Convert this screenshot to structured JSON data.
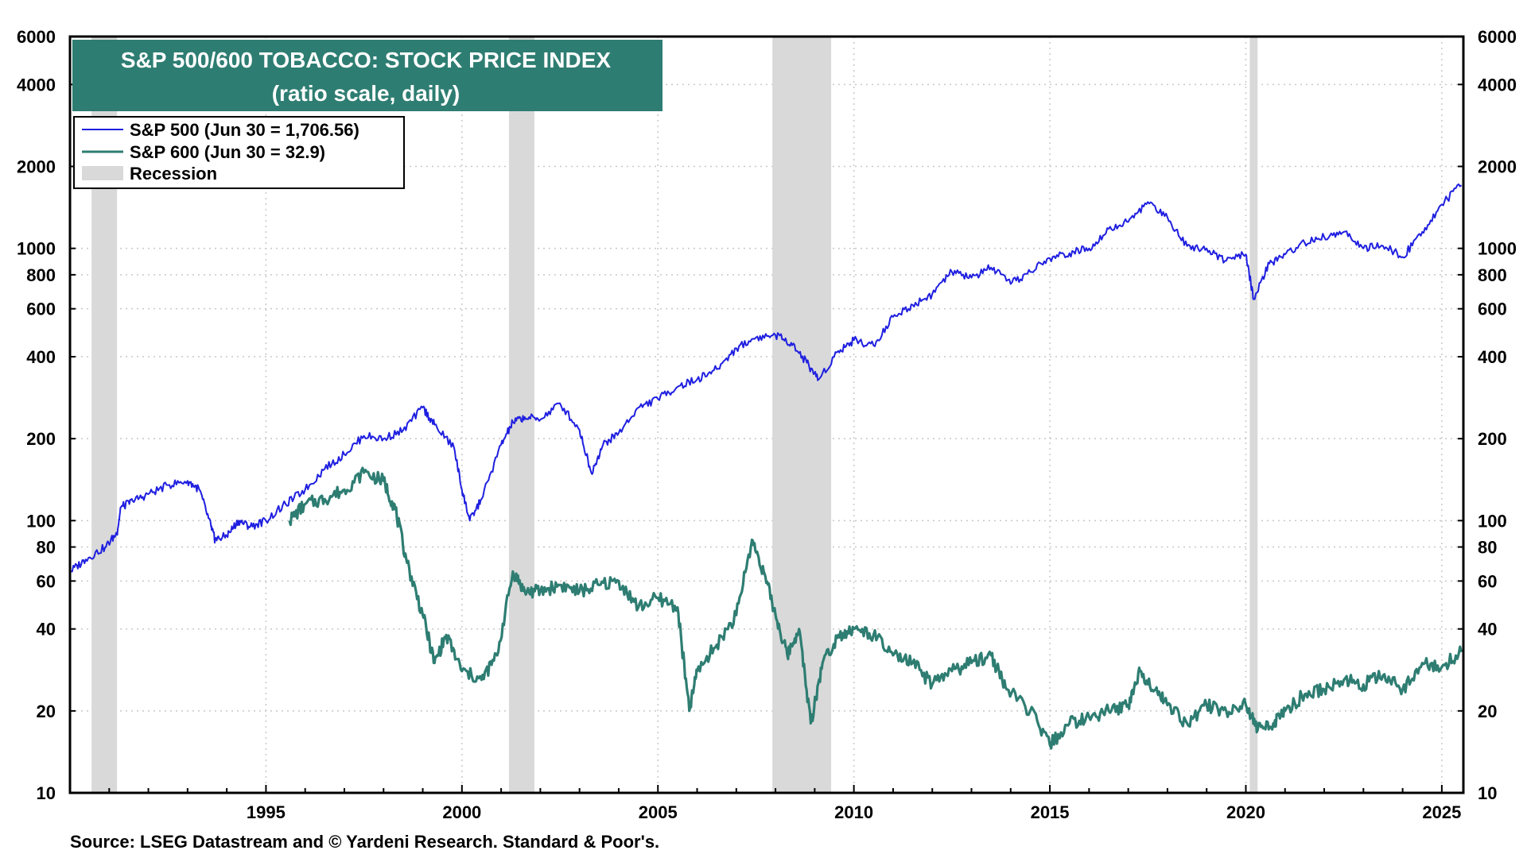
{
  "chart_data": {
    "type": "line",
    "title": "S&P 500/600 TOBACCO: STOCK PRICE INDEX",
    "subtitle": "(ratio scale, daily)",
    "scale": "log",
    "ylim": [
      10,
      6000
    ],
    "xlim": [
      1990.0,
      2025.55
    ],
    "y_ticks": [
      10,
      20,
      40,
      60,
      80,
      100,
      200,
      400,
      600,
      800,
      1000,
      2000,
      4000,
      6000
    ],
    "y_tick_labels": [
      "10",
      "20",
      "40",
      "60",
      "80",
      "100",
      "200",
      "400",
      "600",
      "800",
      "1000",
      "2000",
      "4000",
      "6000"
    ],
    "x_ticks": [
      1995,
      2000,
      2005,
      2010,
      2015,
      2020,
      2025
    ],
    "x_tick_labels": [
      "1995",
      "2000",
      "2005",
      "2010",
      "2015",
      "2020",
      "2025"
    ],
    "grid": true,
    "legend_position": "top-left",
    "series": [
      {
        "name": "S&P 500 (Jun 30 = 1,706.56)",
        "color": "#1f1fe0",
        "points": [
          [
            1990.0,
            65
          ],
          [
            1990.4,
            72
          ],
          [
            1990.9,
            80
          ],
          [
            1991.2,
            90
          ],
          [
            1991.3,
            112
          ],
          [
            1991.6,
            118
          ],
          [
            1992.0,
            125
          ],
          [
            1992.5,
            135
          ],
          [
            1993.0,
            140
          ],
          [
            1993.3,
            130
          ],
          [
            1993.6,
            95
          ],
          [
            1993.7,
            85
          ],
          [
            1994.0,
            88
          ],
          [
            1994.3,
            100
          ],
          [
            1994.6,
            95
          ],
          [
            1995.0,
            100
          ],
          [
            1995.5,
            115
          ],
          [
            1996.0,
            130
          ],
          [
            1996.5,
            155
          ],
          [
            1997.0,
            175
          ],
          [
            1997.5,
            205
          ],
          [
            1998.0,
            200
          ],
          [
            1998.5,
            215
          ],
          [
            1999.0,
            260
          ],
          [
            1999.3,
            225
          ],
          [
            1999.8,
            185
          ],
          [
            2000.0,
            130
          ],
          [
            2000.2,
            100
          ],
          [
            2000.5,
            120
          ],
          [
            2001.0,
            190
          ],
          [
            2001.3,
            230
          ],
          [
            2001.6,
            240
          ],
          [
            2002.0,
            235
          ],
          [
            2002.5,
            270
          ],
          [
            2003.0,
            215
          ],
          [
            2003.3,
            150
          ],
          [
            2003.6,
            190
          ],
          [
            2004.0,
            210
          ],
          [
            2004.5,
            260
          ],
          [
            2005.0,
            280
          ],
          [
            2005.5,
            310
          ],
          [
            2006.0,
            330
          ],
          [
            2006.5,
            360
          ],
          [
            2007.0,
            430
          ],
          [
            2007.5,
            470
          ],
          [
            2008.0,
            480
          ],
          [
            2008.4,
            450
          ],
          [
            2008.8,
            380
          ],
          [
            2009.1,
            330
          ],
          [
            2009.6,
            420
          ],
          [
            2010.0,
            460
          ],
          [
            2010.5,
            440
          ],
          [
            2011.0,
            560
          ],
          [
            2011.5,
            620
          ],
          [
            2012.0,
            680
          ],
          [
            2012.5,
            820
          ],
          [
            2013.0,
            780
          ],
          [
            2013.5,
            850
          ],
          [
            2014.0,
            740
          ],
          [
            2014.5,
            820
          ],
          [
            2015.0,
            920
          ],
          [
            2015.5,
            960
          ],
          [
            2016.0,
            1000
          ],
          [
            2016.5,
            1180
          ],
          [
            2017.0,
            1250
          ],
          [
            2017.5,
            1480
          ],
          [
            2018.0,
            1300
          ],
          [
            2018.5,
            1020
          ],
          [
            2019.0,
            1000
          ],
          [
            2019.5,
            900
          ],
          [
            2020.0,
            950
          ],
          [
            2020.2,
            650
          ],
          [
            2020.6,
            880
          ],
          [
            2021.0,
            950
          ],
          [
            2021.5,
            1050
          ],
          [
            2022.0,
            1100
          ],
          [
            2022.5,
            1150
          ],
          [
            2023.0,
            1000
          ],
          [
            2023.5,
            1020
          ],
          [
            2024.0,
            930
          ],
          [
            2024.5,
            1150
          ],
          [
            2025.0,
            1450
          ],
          [
            2025.5,
            1706.56
          ]
        ]
      },
      {
        "name": "S&P 600 (Jun 30 = 32.9)",
        "color": "#2e7d72",
        "points": [
          [
            1995.6,
            100
          ],
          [
            1996.0,
            115
          ],
          [
            1996.5,
            120
          ],
          [
            1997.0,
            130
          ],
          [
            1997.5,
            150
          ],
          [
            1998.0,
            140
          ],
          [
            1998.3,
            110
          ],
          [
            1998.6,
            70
          ],
          [
            1999.0,
            45
          ],
          [
            1999.3,
            30
          ],
          [
            1999.6,
            38
          ],
          [
            2000.0,
            28
          ],
          [
            2000.5,
            26
          ],
          [
            2000.9,
            32
          ],
          [
            2001.3,
            65
          ],
          [
            2001.6,
            55
          ],
          [
            2002.0,
            55
          ],
          [
            2002.5,
            58
          ],
          [
            2003.0,
            55
          ],
          [
            2003.5,
            58
          ],
          [
            2004.0,
            60
          ],
          [
            2004.5,
            48
          ],
          [
            2005.0,
            52
          ],
          [
            2005.5,
            48
          ],
          [
            2005.8,
            20
          ],
          [
            2006.0,
            28
          ],
          [
            2006.5,
            35
          ],
          [
            2007.0,
            45
          ],
          [
            2007.4,
            85
          ],
          [
            2007.7,
            65
          ],
          [
            2008.0,
            45
          ],
          [
            2008.3,
            32
          ],
          [
            2008.6,
            40
          ],
          [
            2008.9,
            18
          ],
          [
            2009.2,
            30
          ],
          [
            2009.6,
            38
          ],
          [
            2010.0,
            40
          ],
          [
            2010.5,
            38
          ],
          [
            2011.0,
            32
          ],
          [
            2011.5,
            30
          ],
          [
            2012.0,
            25
          ],
          [
            2012.5,
            28
          ],
          [
            2013.0,
            30
          ],
          [
            2013.5,
            32
          ],
          [
            2013.9,
            24
          ],
          [
            2014.5,
            20
          ],
          [
            2015.0,
            15
          ],
          [
            2015.5,
            18
          ],
          [
            2016.0,
            19
          ],
          [
            2016.5,
            20
          ],
          [
            2017.0,
            21
          ],
          [
            2017.3,
            28
          ],
          [
            2017.7,
            24
          ],
          [
            2018.0,
            21
          ],
          [
            2018.5,
            18
          ],
          [
            2019.0,
            21
          ],
          [
            2019.5,
            20
          ],
          [
            2020.0,
            21
          ],
          [
            2020.3,
            17
          ],
          [
            2020.7,
            18
          ],
          [
            2021.0,
            20
          ],
          [
            2021.5,
            23
          ],
          [
            2022.0,
            24
          ],
          [
            2022.5,
            26
          ],
          [
            2023.0,
            25
          ],
          [
            2023.5,
            27
          ],
          [
            2024.0,
            24
          ],
          [
            2024.5,
            30
          ],
          [
            2025.0,
            29
          ],
          [
            2025.5,
            32.9
          ]
        ]
      }
    ],
    "recessions": [
      [
        1990.55,
        1991.2
      ],
      [
        2001.2,
        2001.85
      ],
      [
        2007.92,
        2009.42
      ],
      [
        2020.1,
        2020.3
      ]
    ],
    "recession_label": "Recession",
    "recession_color": "#d9d9d9",
    "source": "Source: LSEG Datastream and © Yardeni Research. Standard & Poor's."
  },
  "colors": {
    "title_box": "#2e7d72",
    "title_text": "#ffffff"
  }
}
